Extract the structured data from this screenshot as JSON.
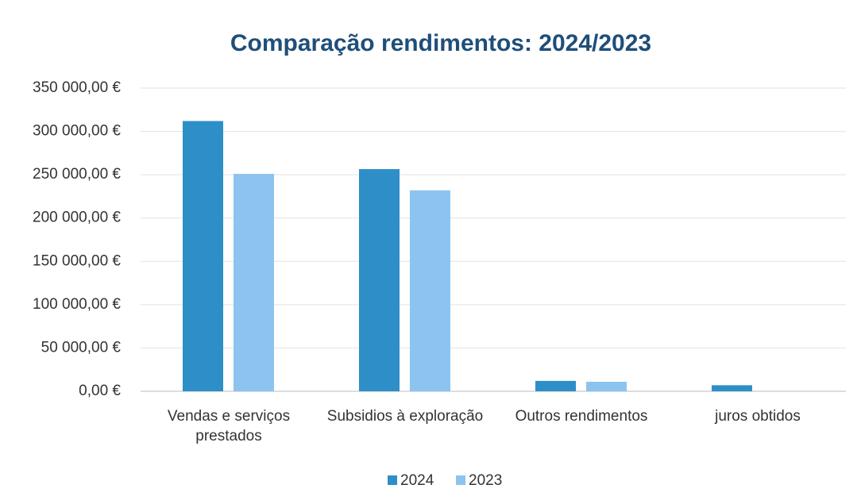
{
  "chart_data": {
    "type": "bar",
    "title": "Comparação rendimentos: 2024/2023",
    "categories": [
      "Vendas e serviços prestados",
      "Subsidios à exploração",
      "Outros rendimentos",
      "juros obtidos"
    ],
    "series": [
      {
        "name": "2024",
        "color": "#2e8fc8",
        "values": [
          312000,
          256500,
          12000,
          7000
        ]
      },
      {
        "name": "2023",
        "color": "#8dc3ef",
        "values": [
          251000,
          232000,
          11000,
          0
        ]
      }
    ],
    "ylim": [
      0,
      350000
    ],
    "yticks": [
      {
        "value": 0,
        "label": "0,00 €"
      },
      {
        "value": 50000,
        "label": "50 000,00 €"
      },
      {
        "value": 100000,
        "label": "100 000,00 €"
      },
      {
        "value": 150000,
        "label": "150 000,00 €"
      },
      {
        "value": 200000,
        "label": "200 000,00 €"
      },
      {
        "value": 250000,
        "label": "250 000,00 €"
      },
      {
        "value": 300000,
        "label": "300 000,00 €"
      },
      {
        "value": 350000,
        "label": "350 000,00 €"
      }
    ],
    "grid": true,
    "legend": "bottom"
  }
}
